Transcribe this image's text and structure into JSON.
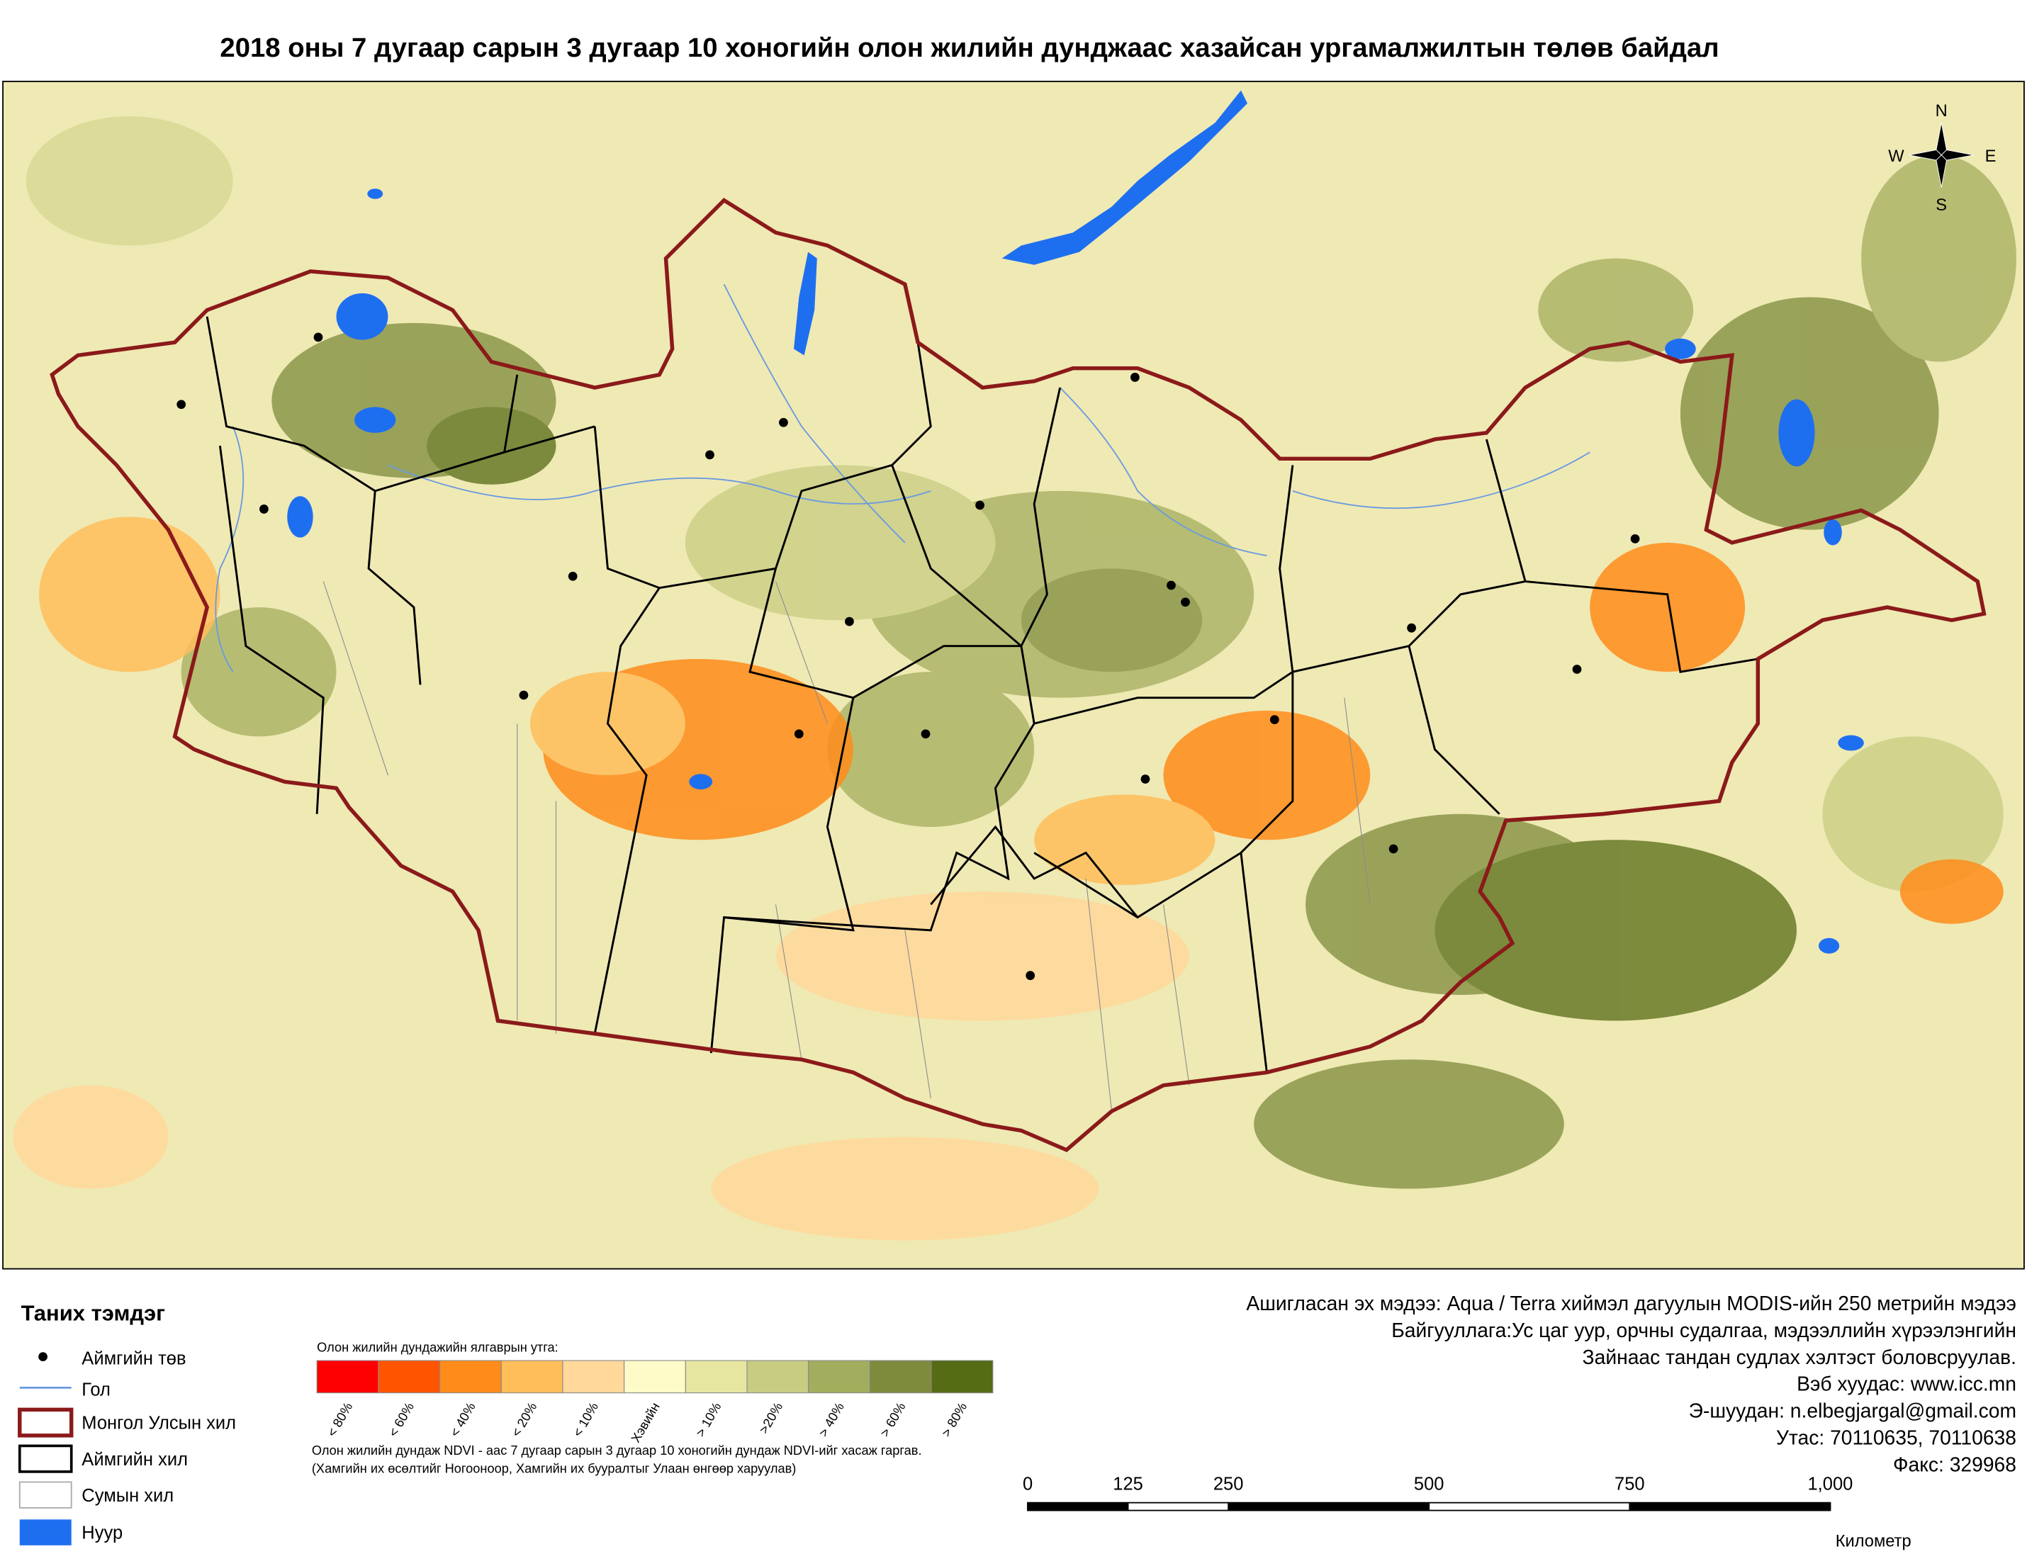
{
  "header": {
    "title": "2018 оны 7 дугаар сарын 3 дугаар 10 хоногийн олон жилийн дунджаас хазайсан ургамалжилтын төлөв байдал"
  },
  "map": {
    "compass": {
      "n": "N",
      "e": "E",
      "s": "S",
      "w": "W"
    }
  },
  "legend": {
    "title": "Таних тэмдэг",
    "items": [
      "Аймгийн төв",
      "Гол",
      "Монгол Улсын хил",
      "Аймгийн хил",
      "Сумын хил",
      "Нуур"
    ]
  },
  "ndvi_scale": {
    "title": "Олон жилийн дундажийн ялгаврын утга:",
    "classes": [
      {
        "label": "< 80%",
        "color": "#ff0000"
      },
      {
        "label": "< 60%",
        "color": "#ff5500"
      },
      {
        "label": "< 40%",
        "color": "#ff8c1a"
      },
      {
        "label": "< 20%",
        "color": "#ffbe5a"
      },
      {
        "label": "< 10%",
        "color": "#ffd89a"
      },
      {
        "label": "Хэвийн",
        "color": "#fffbc8"
      },
      {
        "label": "> 10%",
        "color": "#e6e6a0"
      },
      {
        "label": ">20%",
        "color": "#c8cc82"
      },
      {
        "label": "> 40%",
        "color": "#a3ad5e"
      },
      {
        "label": "> 60%",
        "color": "#7e8b3c"
      },
      {
        "label": "> 80%",
        "color": "#556b14"
      }
    ]
  },
  "notes": [
    "Олон жилийн дундаж NDVI - аас 7 дугаар сарын 3 дугаар 10 хоногийн дундаж NDVI-ийг хасаж гаргав.",
    "(Хамгийн их өсөлтийг Ногооноор,  Хамгийн их бууралтыг Улаан өнгөөр харуулав)"
  ],
  "credits": [
    "Ашигласан эх мэдээ: Aqua / Terra хиймэл дагуулын MODIS-ийн 250 метрийн мэдээ",
    "Байгууллага:Ус цаг уур, орчны судалгаа, мэдээллийн хүрээлэнгийн",
    "Зайнаас тандан судлах хэлтэст боловсруулав.",
    "Вэб хуудас: www.icc.mn",
    "Э-шуудан: n.elbegjargal@gmail.com",
    "Утас: 70110635, 70110638",
    "Факс: 329968"
  ],
  "scale_bar": {
    "ticks": [
      0,
      125,
      250,
      500,
      750,
      {
        "value": 1000,
        "label": "1,000"
      }
    ],
    "unit": "Километр"
  }
}
